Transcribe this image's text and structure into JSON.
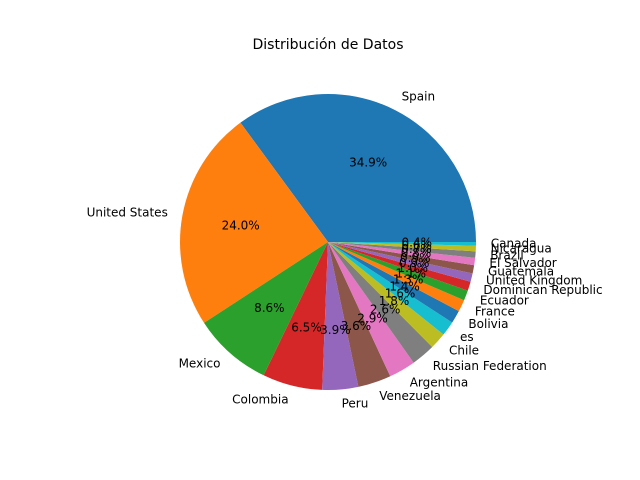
{
  "chart_data": {
    "type": "pie",
    "title": "Distribución de Datos",
    "labels": [
      "Spain",
      "United States",
      "Mexico",
      "Colombia",
      "Peru",
      "Venezuela",
      "Argentina",
      "Russian Federation",
      "Chile",
      "es",
      "Bolivia",
      "France",
      "Ecuador",
      "Dominican Republic",
      "United Kingdom",
      "Guatemala",
      "El Salvador",
      "Brazil",
      "Nicaragua",
      "Canada"
    ],
    "values": [
      34.9,
      24.0,
      8.6,
      6.5,
      3.9,
      3.6,
      2.9,
      2.6,
      1.8,
      1.6,
      1.4,
      1.3,
      1.1,
      1.0,
      0.9,
      0.9,
      0.8,
      0.7,
      0.6,
      0.4
    ],
    "pct_labels": [
      "34.9%",
      "24.0%",
      "8.6%",
      "6.5%",
      "3.9%",
      "3.6%",
      "2.9%",
      "2.6%",
      "1.8%",
      "1.6%",
      "1.4%",
      "1.3%",
      "1.1%",
      "1.0%",
      "0.9%",
      "0.9%",
      "0.8%",
      "0.7%",
      "0.6%",
      "0.4%"
    ],
    "colors": [
      "#1f77b4",
      "#ff7f0e",
      "#2ca02c",
      "#d62728",
      "#9467bd",
      "#8c564b",
      "#e377c2",
      "#7f7f7f",
      "#bcbd22",
      "#17becf",
      "#1f77b4",
      "#ff7f0e",
      "#2ca02c",
      "#d62728",
      "#9467bd",
      "#8c564b",
      "#e377c2",
      "#7f7f7f",
      "#bcbd22",
      "#17becf"
    ],
    "start_angle_deg": 0,
    "direction": "counterclockwise"
  }
}
